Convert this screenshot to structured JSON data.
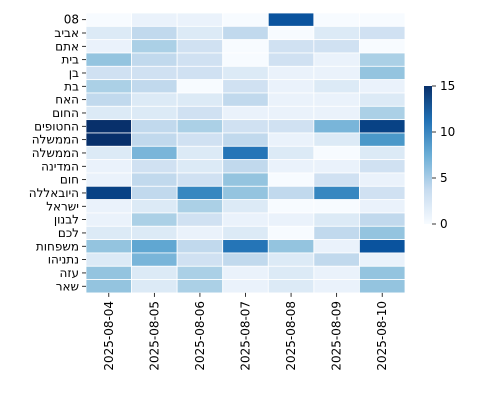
{
  "chart_data": {
    "type": "heatmap",
    "title": "",
    "xlabel": "",
    "ylabel": "",
    "x_categories": [
      "2025-08-04",
      "2025-08-05",
      "2025-08-06",
      "2025-08-07",
      "2025-08-08",
      "2025-08-09",
      "2025-08-10"
    ],
    "y_categories": [
      "08",
      "אביב",
      "אתם",
      "בית",
      "בן",
      "בת",
      "האח",
      "החום",
      "החטופים",
      "הממשלה",
      "הממשלה",
      "המדינה",
      "חום",
      "היובאללה",
      "ישראל",
      "לבנון",
      "לכם",
      "משפחות",
      "נתניהו",
      "עזה",
      "שאר"
    ],
    "values": [
      [
        0,
        1,
        1,
        0,
        13,
        0,
        0
      ],
      [
        2,
        4,
        2,
        4,
        0,
        2,
        3
      ],
      [
        1,
        5,
        3,
        0,
        3,
        3,
        0
      ],
      [
        6,
        4,
        3,
        0,
        3,
        1,
        5
      ],
      [
        3,
        3,
        3,
        2,
        1,
        1,
        6
      ],
      [
        5,
        4,
        0,
        3,
        1,
        2,
        1
      ],
      [
        4,
        2,
        2,
        4,
        1,
        1,
        2
      ],
      [
        2,
        2,
        3,
        1,
        1,
        1,
        5
      ],
      [
        15,
        4,
        5,
        3,
        3,
        7,
        14
      ],
      [
        15,
        4,
        3,
        4,
        1,
        2,
        9
      ],
      [
        2,
        7,
        2,
        11,
        2,
        0,
        2
      ],
      [
        1,
        3,
        2,
        4,
        1,
        1,
        3
      ],
      [
        1,
        4,
        3,
        6,
        0,
        3,
        1
      ],
      [
        14,
        4,
        10,
        6,
        4,
        10,
        3
      ],
      [
        1,
        2,
        5,
        2,
        0,
        0,
        1
      ],
      [
        1,
        5,
        3,
        1,
        1,
        2,
        4
      ],
      [
        2,
        2,
        1,
        2,
        0,
        4,
        6
      ],
      [
        6,
        8,
        4,
        11,
        6,
        1,
        13
      ],
      [
        2,
        7,
        3,
        4,
        2,
        4,
        1
      ],
      [
        6,
        2,
        5,
        1,
        2,
        1,
        6
      ],
      [
        6,
        2,
        5,
        1,
        2,
        1,
        6
      ]
    ],
    "colorbar": {
      "min": 0,
      "max": 15,
      "ticks": [
        0,
        5,
        10,
        15
      ]
    },
    "colormap": {
      "low": "#f7fbff",
      "mid": "#6baed6",
      "high": "#08306b"
    },
    "grid": false
  }
}
